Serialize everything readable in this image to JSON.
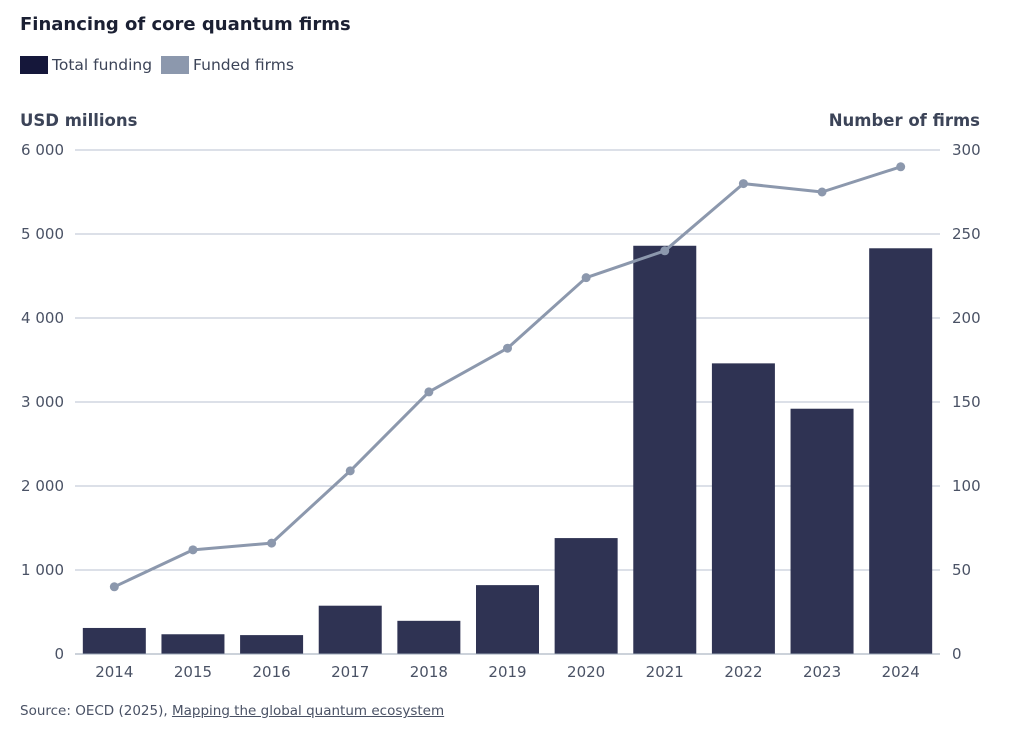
{
  "colors": {
    "bar": "#2f3353",
    "line": "#8c98ad",
    "grid": "#b8c2d0",
    "axis_text": "#4a5265"
  },
  "legend": [
    {
      "label": "Total funding",
      "color": "#15173a"
    },
    {
      "label": "Funded firms",
      "color": "#8c98ad"
    }
  ],
  "source": {
    "prefix": "Source: OECD (2025), ",
    "link_text": "Mapping the global quantum ecosystem"
  },
  "chart_data": {
    "type": "bar",
    "title": "Financing of core quantum firms",
    "categories": [
      "2014",
      "2015",
      "2016",
      "2017",
      "2018",
      "2019",
      "2020",
      "2021",
      "2022",
      "2023",
      "2024"
    ],
    "series": [
      {
        "name": "Total funding",
        "type": "bar",
        "axis": "left",
        "values": [
          310,
          235,
          225,
          575,
          395,
          820,
          1380,
          4860,
          3460,
          2920,
          4830
        ]
      },
      {
        "name": "Funded firms",
        "type": "line",
        "axis": "right",
        "values": [
          40,
          62,
          66,
          109,
          156,
          182,
          224,
          240,
          280,
          275,
          290
        ]
      }
    ],
    "ylabel": "USD millions",
    "ylabel_right": "Number of firms",
    "ylim": [
      0,
      6000
    ],
    "ylim_right": [
      0,
      300
    ],
    "yticks": [
      0,
      1000,
      2000,
      3000,
      4000,
      5000,
      6000
    ],
    "yticks_labels": [
      "0",
      "1 000",
      "2 000",
      "3 000",
      "4 000",
      "5 000",
      "6 000"
    ],
    "yticks_right": [
      0,
      50,
      100,
      150,
      200,
      250,
      300
    ],
    "yticks_right_labels": [
      "0",
      "50",
      "100",
      "150",
      "200",
      "250",
      "300"
    ],
    "grid": true,
    "legend_position": "top-left"
  }
}
